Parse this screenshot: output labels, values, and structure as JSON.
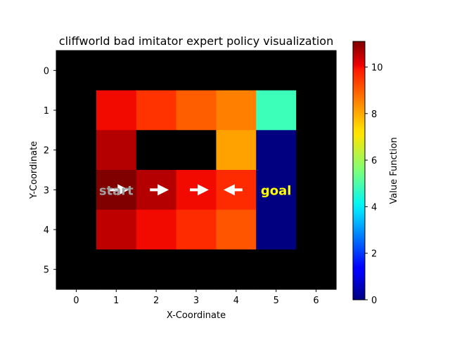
{
  "chart_data": {
    "type": "heatmap",
    "title": "cliffworld bad imitator expert policy visualization",
    "xlabel": "X-Coordinate",
    "ylabel": "Y-Coordinate",
    "x_ticks": [
      "0",
      "1",
      "2",
      "3",
      "4",
      "5",
      "6"
    ],
    "y_ticks": [
      "0",
      "1",
      "2",
      "3",
      "4",
      "5"
    ],
    "colorbar": {
      "label": "Value Function",
      "ticks": [
        "0",
        "2",
        "4",
        "6",
        "8",
        "10"
      ],
      "tick_values": [
        0,
        2,
        4,
        6,
        8,
        10
      ],
      "vmin": 0,
      "vmax": 11.1,
      "colormap": "jet"
    },
    "grid_values": [
      [
        null,
        null,
        null,
        null,
        null,
        null,
        null
      ],
      [
        null,
        10.0,
        9.5,
        9.0,
        8.6,
        4.7,
        null
      ],
      [
        null,
        10.6,
        null,
        null,
        8.2,
        0.0,
        null
      ],
      [
        null,
        11.1,
        10.6,
        10.0,
        9.6,
        0.0,
        null
      ],
      [
        null,
        10.5,
        10.0,
        9.6,
        9.1,
        0.0,
        null
      ],
      [
        null,
        null,
        null,
        null,
        null,
        null,
        null
      ]
    ],
    "actions": [
      {
        "x": 1,
        "y": 3,
        "direction": "right"
      },
      {
        "x": 2,
        "y": 3,
        "direction": "right"
      },
      {
        "x": 3,
        "y": 3,
        "direction": "right"
      },
      {
        "x": 4,
        "y": 3,
        "direction": "left"
      }
    ],
    "labels": [
      {
        "text": "start",
        "x": 1,
        "y": 3,
        "color": "#a0a0a0"
      },
      {
        "text": "goal",
        "x": 5,
        "y": 3,
        "color": "#ffff00"
      }
    ],
    "empty_color": "#000000",
    "arrow_color": "#ffffff"
  }
}
